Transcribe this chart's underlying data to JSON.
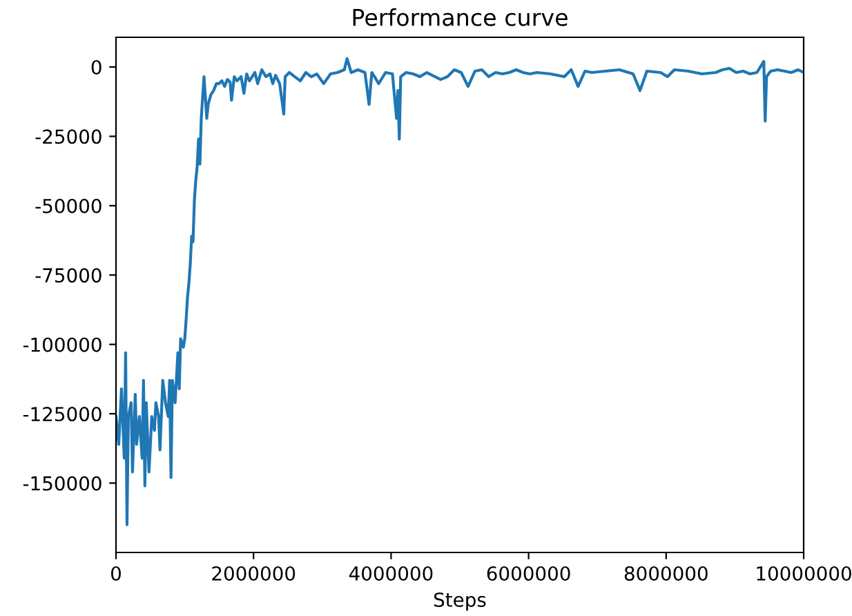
{
  "chart_data": {
    "type": "line",
    "title": "Performance curve",
    "xlabel": "Steps",
    "x": [
      0,
      40000,
      80000,
      120000,
      140000,
      160000,
      180000,
      220000,
      240000,
      280000,
      300000,
      340000,
      380000,
      400000,
      420000,
      440000,
      480000,
      520000,
      560000,
      580000,
      620000,
      640000,
      680000,
      720000,
      760000,
      780000,
      800000,
      820000,
      860000,
      900000,
      920000,
      940000,
      980000,
      1000000,
      1020000,
      1040000,
      1060000,
      1080000,
      1100000,
      1120000,
      1140000,
      1160000,
      1180000,
      1200000,
      1220000,
      1240000,
      1260000,
      1280000,
      1320000,
      1340000,
      1380000,
      1420000,
      1460000,
      1500000,
      1540000,
      1580000,
      1620000,
      1660000,
      1680000,
      1720000,
      1760000,
      1820000,
      1860000,
      1900000,
      1940000,
      1980000,
      2020000,
      2060000,
      2120000,
      2180000,
      2240000,
      2280000,
      2320000,
      2380000,
      2440000,
      2460000,
      2520000,
      2600000,
      2680000,
      2760000,
      2840000,
      2920000,
      3020000,
      3120000,
      3220000,
      3320000,
      3360000,
      3420000,
      3520000,
      3620000,
      3680000,
      3720000,
      3760000,
      3820000,
      3920000,
      4020000,
      4080000,
      4100000,
      4120000,
      4140000,
      4220000,
      4320000,
      4420000,
      4520000,
      4720000,
      4820000,
      4920000,
      5020000,
      5120000,
      5220000,
      5320000,
      5420000,
      5520000,
      5620000,
      5720000,
      5820000,
      5920000,
      6020000,
      6120000,
      6320000,
      6520000,
      6620000,
      6720000,
      6820000,
      6920000,
      7120000,
      7320000,
      7520000,
      7620000,
      7720000,
      7920000,
      8020000,
      8120000,
      8320000,
      8520000,
      8720000,
      8820000,
      8920000,
      9020000,
      9120000,
      9220000,
      9320000,
      9420000,
      9440000,
      9460000,
      9520000,
      9620000,
      9720000,
      9820000,
      9920000,
      10000000
    ],
    "series": [
      {
        "color": "#1f77b4",
        "values": [
          -126000,
          -136000,
          -116000,
          -141000,
          -103000,
          -165000,
          -126000,
          -121000,
          -146000,
          -118000,
          -136000,
          -126000,
          -141000,
          -113000,
          -151000,
          -121000,
          -146000,
          -126000,
          -131000,
          -121000,
          -126000,
          -138000,
          -113000,
          -121000,
          -126000,
          -113000,
          -148000,
          -113000,
          -121000,
          -103000,
          -116000,
          -98000,
          -101000,
          -98000,
          -91000,
          -83000,
          -78000,
          -71000,
          -61000,
          -63000,
          -48000,
          -41000,
          -36000,
          -26000,
          -35000,
          -18500,
          -11000,
          -3500,
          -18500,
          -13500,
          -10000,
          -8500,
          -6000,
          -6000,
          -5000,
          -7000,
          -4500,
          -5500,
          -12000,
          -3500,
          -5000,
          -3500,
          -9500,
          -2500,
          -5000,
          -3500,
          -2000,
          -6000,
          -1000,
          -3500,
          -2500,
          -6000,
          -3000,
          -6000,
          -17000,
          -3500,
          -2000,
          -3500,
          -5000,
          -2000,
          -3500,
          -2500,
          -6000,
          -2500,
          -2000,
          -1000,
          3000,
          -2000,
          -1000,
          -2000,
          -13500,
          -2000,
          -3500,
          -6000,
          -2000,
          -2500,
          -18500,
          -8500,
          -26000,
          -3500,
          -2000,
          -2500,
          -3500,
          -2000,
          -4500,
          -3500,
          -1000,
          -2000,
          -7000,
          -1500,
          -1000,
          -3500,
          -2000,
          -2500,
          -2000,
          -1000,
          -2000,
          -2500,
          -2000,
          -2500,
          -3500,
          -1000,
          -7000,
          -1500,
          -2000,
          -1500,
          -1000,
          -2500,
          -8500,
          -1500,
          -2000,
          -3500,
          -1000,
          -1500,
          -2500,
          -2000,
          -1000,
          -500,
          -2000,
          -1500,
          -2500,
          -2000,
          2000,
          -19500,
          -3500,
          -1500,
          -1000,
          -1500,
          -2000,
          -1000,
          -2000
        ]
      }
    ],
    "xlim": [
      0,
      10000000
    ],
    "ylim": [
      -175000,
      10700
    ],
    "xticks": [
      0,
      2000000,
      4000000,
      6000000,
      8000000,
      10000000
    ],
    "yticks": [
      -150000,
      -125000,
      -100000,
      -75000,
      -50000,
      -25000,
      0
    ],
    "grid": false,
    "marker": "none",
    "line_style": "solid"
  }
}
